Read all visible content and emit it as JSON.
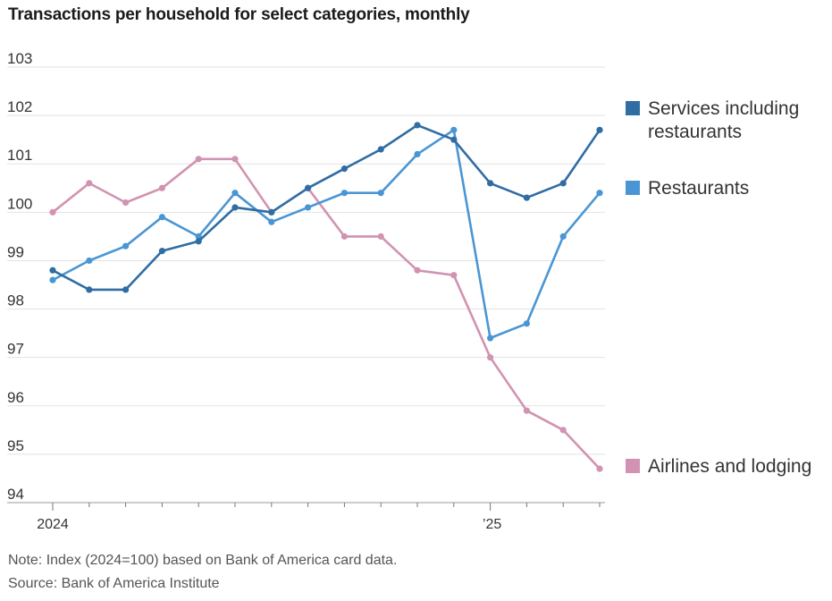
{
  "title": "Transactions per household for select categories, monthly",
  "note": "Note: Index (2024=100) based on Bank of America card data.",
  "source": "Source: Bank of America Institute",
  "chart_data": {
    "type": "line",
    "title": "Transactions per household for select categories, monthly",
    "xlabel": "",
    "ylabel": "",
    "x_tick_labels": [
      "2024",
      "’25"
    ],
    "y_tick_labels": [
      "103",
      "102",
      "101",
      "100",
      "99",
      "98",
      "97",
      "96",
      "95",
      "94"
    ],
    "ylim": [
      94,
      103
    ],
    "grid": true,
    "legend_placement": "right, aligned to line ends",
    "categories": [
      "Jan 2024",
      "Feb 2024",
      "Mar 2024",
      "Apr 2024",
      "May 2024",
      "Jun 2024",
      "Jul 2024",
      "Aug 2024",
      "Sep 2024",
      "Oct 2024",
      "Nov 2024",
      "Dec 2024",
      "Jan 2025",
      "Feb 2025",
      "Mar 2025",
      "Apr 2025"
    ],
    "series": [
      {
        "name": "Services including restaurants",
        "color": "#2f6da3",
        "values": [
          98.8,
          98.4,
          98.4,
          99.2,
          99.4,
          100.1,
          100.0,
          100.5,
          100.9,
          101.3,
          101.8,
          101.5,
          100.6,
          100.3,
          100.6,
          101.7
        ]
      },
      {
        "name": "Restaurants",
        "color": "#4a96d4",
        "values": [
          98.6,
          99.0,
          99.3,
          99.9,
          99.5,
          100.4,
          99.8,
          100.1,
          100.4,
          100.4,
          101.2,
          101.7,
          97.4,
          97.7,
          99.5,
          100.4
        ]
      },
      {
        "name": "Airlines and lodging",
        "color": "#d193b1",
        "values": [
          100.0,
          100.6,
          100.2,
          100.5,
          101.1,
          101.1,
          100.0,
          100.5,
          99.5,
          99.5,
          98.8,
          98.7,
          97.0,
          95.9,
          95.5,
          94.7
        ]
      }
    ]
  }
}
